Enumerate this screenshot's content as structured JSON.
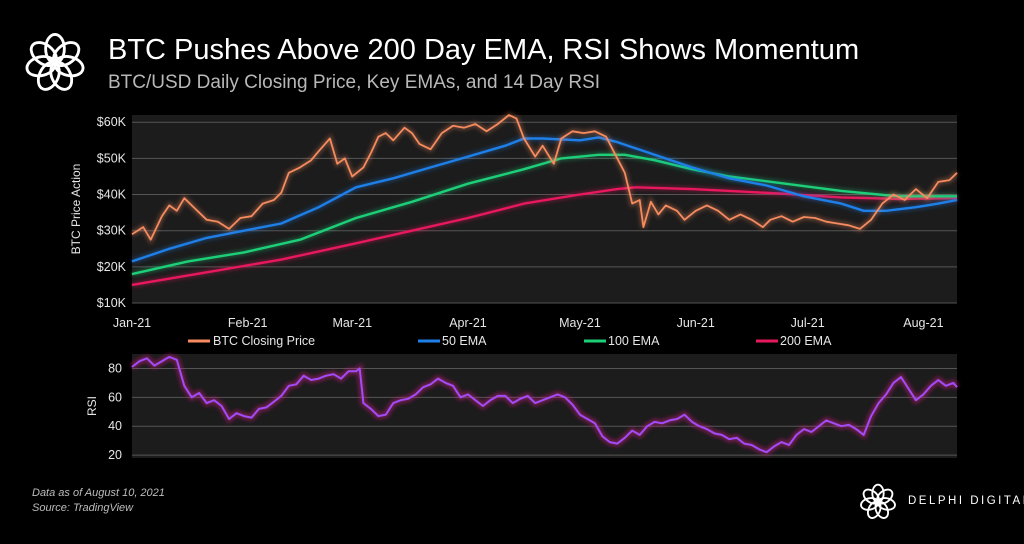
{
  "header": {
    "title": "BTC Pushes Above 200 Day EMA, RSI Shows Momentum",
    "subtitle": "BTC/USD Daily Closing Price, Key EMAs, and 14 Day RSI"
  },
  "footer": {
    "note_date": "Data as of August 10, 2021",
    "note_source": "Source:  TradingView",
    "brand": "DELPHI DIGITAL"
  },
  "colors": {
    "background": "#000000",
    "plot_bg": "#1c1c1c",
    "btc": "#f58b5f",
    "ema50": "#1f7fe8",
    "ema100": "#1dcf78",
    "ema200": "#e8185e",
    "rsi": "#9d4ef6"
  },
  "chart_data": [
    {
      "type": "line",
      "name": "price",
      "ylabel": "BTC Price Action",
      "xlabel": "",
      "ylim": [
        10000,
        62000
      ],
      "yticks": [
        10000,
        20000,
        30000,
        40000,
        50000,
        60000
      ],
      "ytick_labels": [
        "$10K",
        "$20K",
        "$30K",
        "$40K",
        "$50K",
        "$60K"
      ],
      "xlim": [
        0,
        221
      ],
      "xticks": [
        0,
        31,
        59,
        90,
        120,
        151,
        181,
        212
      ],
      "xtick_labels": [
        "Jan-21",
        "Feb-21",
        "Mar-21",
        "Apr-21",
        "May-21",
        "Jun-21",
        "Jul-21",
        "Aug-21"
      ],
      "grid": true,
      "legend_position": "bottom",
      "series": [
        {
          "name": "BTC Closing Price",
          "color_key": "btc",
          "points": [
            [
              0,
              29000
            ],
            [
              3,
              31000
            ],
            [
              5,
              27500
            ],
            [
              8,
              34000
            ],
            [
              10,
              37000
            ],
            [
              12,
              35500
            ],
            [
              14,
              39000
            ],
            [
              17,
              36000
            ],
            [
              20,
              33000
            ],
            [
              23,
              32500
            ],
            [
              26,
              30500
            ],
            [
              29,
              33500
            ],
            [
              32,
              34000
            ],
            [
              35,
              37500
            ],
            [
              38,
              38500
            ],
            [
              40,
              40500
            ],
            [
              42,
              46000
            ],
            [
              45,
              47500
            ],
            [
              48,
              49500
            ],
            [
              50,
              52000
            ],
            [
              53,
              55500
            ],
            [
              55,
              48500
            ],
            [
              57,
              50000
            ],
            [
              59,
              45000
            ],
            [
              62,
              47500
            ],
            [
              64,
              51500
            ],
            [
              66,
              56000
            ],
            [
              68,
              57000
            ],
            [
              70,
              55000
            ],
            [
              73,
              58500
            ],
            [
              75,
              57000
            ],
            [
              77,
              54000
            ],
            [
              80,
              52500
            ],
            [
              83,
              57000
            ],
            [
              86,
              59000
            ],
            [
              89,
              58500
            ],
            [
              92,
              59500
            ],
            [
              95,
              57500
            ],
            [
              98,
              59500
            ],
            [
              101,
              62000
            ],
            [
              103,
              61000
            ],
            [
              105,
              55500
            ],
            [
              108,
              50500
            ],
            [
              110,
              53500
            ],
            [
              113,
              48500
            ],
            [
              115,
              55500
            ],
            [
              118,
              57500
            ],
            [
              121,
              57000
            ],
            [
              124,
              57500
            ],
            [
              127,
              56000
            ],
            [
              130,
              50000
            ],
            [
              132,
              46000
            ],
            [
              134,
              37500
            ],
            [
              136,
              38500
            ],
            [
              137,
              31000
            ],
            [
              139,
              38000
            ],
            [
              141,
              34500
            ],
            [
              143,
              37000
            ],
            [
              146,
              35500
            ],
            [
              148,
              33000
            ],
            [
              151,
              35500
            ],
            [
              154,
              37000
            ],
            [
              157,
              35500
            ],
            [
              160,
              33000
            ],
            [
              163,
              34500
            ],
            [
              166,
              33000
            ],
            [
              169,
              31000
            ],
            [
              171,
              33000
            ],
            [
              174,
              34000
            ],
            [
              177,
              32500
            ],
            [
              180,
              33800
            ],
            [
              183,
              33500
            ],
            [
              186,
              32500
            ],
            [
              189,
              32000
            ],
            [
              192,
              31500
            ],
            [
              195,
              30500
            ],
            [
              198,
              33000
            ],
            [
              201,
              37500
            ],
            [
              204,
              40000
            ],
            [
              207,
              38500
            ],
            [
              210,
              41500
            ],
            [
              213,
              39000
            ],
            [
              216,
              43500
            ],
            [
              219,
              44000
            ],
            [
              221,
              46000
            ]
          ]
        },
        {
          "name": "50 EMA",
          "color_key": "ema50",
          "points": [
            [
              0,
              21500
            ],
            [
              10,
              25000
            ],
            [
              20,
              28000
            ],
            [
              30,
              30000
            ],
            [
              40,
              32000
            ],
            [
              50,
              36500
            ],
            [
              60,
              42000
            ],
            [
              70,
              44500
            ],
            [
              80,
              47500
            ],
            [
              90,
              50500
            ],
            [
              100,
              53500
            ],
            [
              105,
              55500
            ],
            [
              110,
              55500
            ],
            [
              120,
              55000
            ],
            [
              125,
              55800
            ],
            [
              130,
              54500
            ],
            [
              140,
              51000
            ],
            [
              150,
              47500
            ],
            [
              160,
              44500
            ],
            [
              170,
              42500
            ],
            [
              180,
              39500
            ],
            [
              190,
              37500
            ],
            [
              196,
              35500
            ],
            [
              202,
              35500
            ],
            [
              210,
              36500
            ],
            [
              216,
              37500
            ],
            [
              221,
              38500
            ]
          ]
        },
        {
          "name": "100 EMA",
          "color_key": "ema100",
          "points": [
            [
              0,
              18000
            ],
            [
              15,
              21500
            ],
            [
              30,
              24000
            ],
            [
              45,
              27500
            ],
            [
              60,
              33500
            ],
            [
              75,
              38000
            ],
            [
              90,
              43000
            ],
            [
              105,
              47000
            ],
            [
              115,
              50000
            ],
            [
              125,
              51000
            ],
            [
              132,
              51000
            ],
            [
              140,
              49500
            ],
            [
              150,
              47000
            ],
            [
              160,
              45000
            ],
            [
              175,
              43000
            ],
            [
              190,
              41000
            ],
            [
              205,
              39500
            ],
            [
              221,
              39500
            ]
          ]
        },
        {
          "name": "200 EMA",
          "color_key": "ema200",
          "points": [
            [
              0,
              15000
            ],
            [
              20,
              18500
            ],
            [
              40,
              22000
            ],
            [
              60,
              26500
            ],
            [
              75,
              30000
            ],
            [
              90,
              33500
            ],
            [
              105,
              37500
            ],
            [
              120,
              40000
            ],
            [
              130,
              41500
            ],
            [
              135,
              42000
            ],
            [
              150,
              41500
            ],
            [
              160,
              41000
            ],
            [
              175,
              40200
            ],
            [
              190,
              39200
            ],
            [
              205,
              38800
            ],
            [
              221,
              39000
            ]
          ]
        }
      ]
    },
    {
      "type": "line",
      "name": "rsi",
      "ylabel": "RSI",
      "xlabel": "",
      "ylim": [
        18,
        90
      ],
      "yticks": [
        20,
        40,
        60,
        80
      ],
      "ytick_labels": [
        "20",
        "40",
        "60",
        "80"
      ],
      "xlim": [
        0,
        221
      ],
      "grid": true,
      "series": [
        {
          "name": "RSI",
          "color_key": "rsi",
          "points": [
            [
              0,
              81
            ],
            [
              2,
              85
            ],
            [
              4,
              87
            ],
            [
              6,
              82
            ],
            [
              8,
              85
            ],
            [
              10,
              88
            ],
            [
              12,
              86
            ],
            [
              14,
              68
            ],
            [
              16,
              60
            ],
            [
              18,
              63
            ],
            [
              20,
              56
            ],
            [
              22,
              58
            ],
            [
              24,
              54
            ],
            [
              26,
              45
            ],
            [
              28,
              49
            ],
            [
              30,
              47
            ],
            [
              32,
              46
            ],
            [
              34,
              52
            ],
            [
              36,
              53
            ],
            [
              38,
              57
            ],
            [
              40,
              61
            ],
            [
              42,
              68
            ],
            [
              44,
              69
            ],
            [
              46,
              75
            ],
            [
              48,
              72
            ],
            [
              50,
              73
            ],
            [
              52,
              75
            ],
            [
              54,
              76
            ],
            [
              56,
              73
            ],
            [
              58,
              78
            ],
            [
              60,
              78
            ],
            [
              61,
              80
            ],
            [
              62,
              56
            ],
            [
              64,
              52
            ],
            [
              66,
              47
            ],
            [
              68,
              48
            ],
            [
              70,
              56
            ],
            [
              72,
              58
            ],
            [
              74,
              59
            ],
            [
              76,
              62
            ],
            [
              78,
              67
            ],
            [
              80,
              69
            ],
            [
              82,
              73
            ],
            [
              84,
              70
            ],
            [
              86,
              68
            ],
            [
              88,
              60
            ],
            [
              90,
              62
            ],
            [
              92,
              58
            ],
            [
              94,
              54
            ],
            [
              96,
              58
            ],
            [
              98,
              61
            ],
            [
              100,
              61
            ],
            [
              102,
              56
            ],
            [
              104,
              59
            ],
            [
              106,
              61
            ],
            [
              108,
              56
            ],
            [
              110,
              58
            ],
            [
              112,
              60
            ],
            [
              114,
              62
            ],
            [
              116,
              60
            ],
            [
              118,
              55
            ],
            [
              120,
              48
            ],
            [
              122,
              45
            ],
            [
              124,
              42
            ],
            [
              126,
              33
            ],
            [
              128,
              29
            ],
            [
              130,
              28
            ],
            [
              132,
              32
            ],
            [
              134,
              37
            ],
            [
              136,
              34
            ],
            [
              138,
              40
            ],
            [
              140,
              43
            ],
            [
              142,
              42
            ],
            [
              144,
              44
            ],
            [
              146,
              45
            ],
            [
              148,
              48
            ],
            [
              150,
              43
            ],
            [
              152,
              40
            ],
            [
              154,
              38
            ],
            [
              156,
              35
            ],
            [
              158,
              34
            ],
            [
              160,
              31
            ],
            [
              162,
              32
            ],
            [
              164,
              28
            ],
            [
              166,
              27
            ],
            [
              168,
              24
            ],
            [
              170,
              22
            ],
            [
              172,
              26
            ],
            [
              174,
              29
            ],
            [
              176,
              27
            ],
            [
              178,
              34
            ],
            [
              180,
              38
            ],
            [
              182,
              36
            ],
            [
              184,
              40
            ],
            [
              186,
              44
            ],
            [
              188,
              42
            ],
            [
              190,
              40
            ],
            [
              192,
              41
            ],
            [
              194,
              38
            ],
            [
              196,
              34
            ],
            [
              198,
              47
            ],
            [
              200,
              56
            ],
            [
              202,
              62
            ],
            [
              204,
              70
            ],
            [
              206,
              74
            ],
            [
              208,
              66
            ],
            [
              210,
              58
            ],
            [
              212,
              62
            ],
            [
              214,
              68
            ],
            [
              216,
              72
            ],
            [
              218,
              68
            ],
            [
              220,
              70
            ],
            [
              221,
              67
            ]
          ]
        }
      ]
    }
  ]
}
